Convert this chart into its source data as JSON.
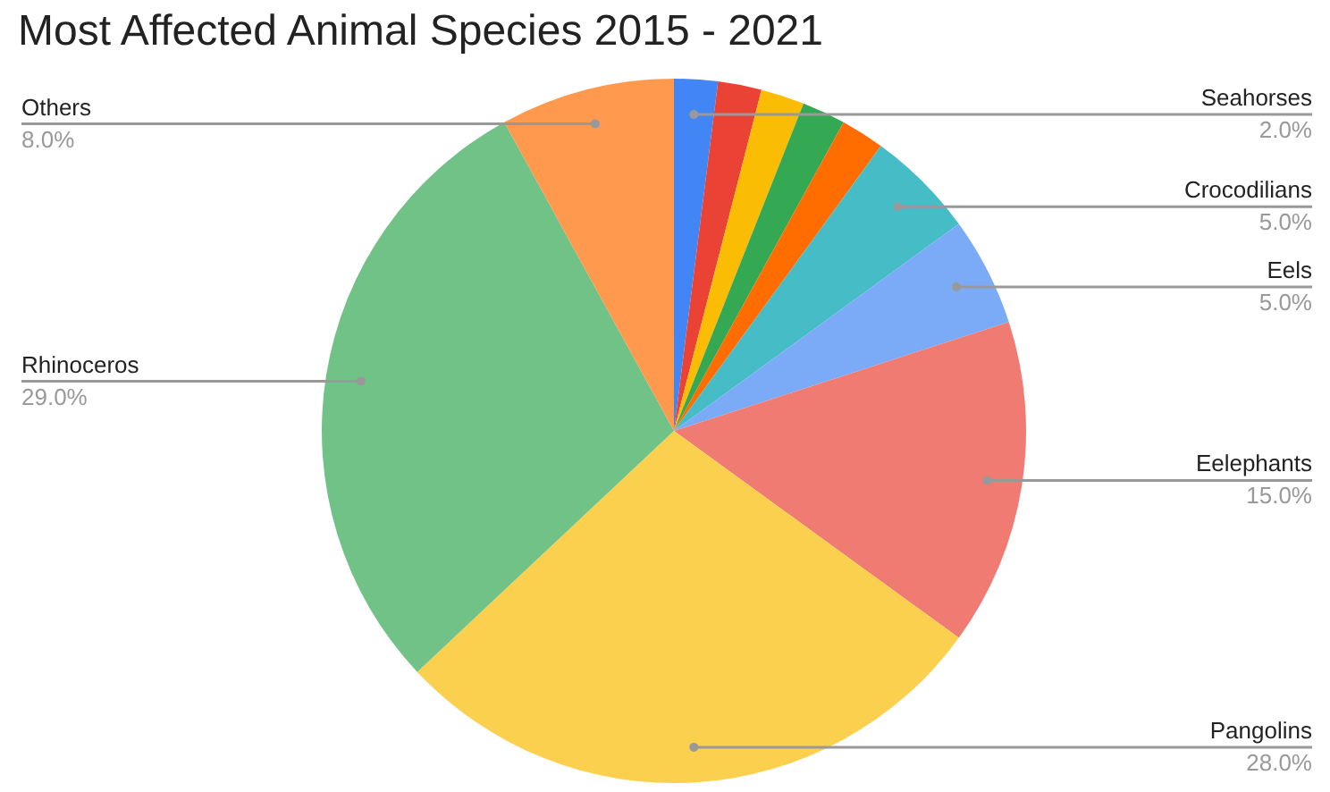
{
  "chart_data": {
    "type": "pie",
    "title": "Most Affected Animal Species 2015 - 2021",
    "categories": [
      "Seahorses",
      null,
      null,
      null,
      null,
      "Crocodilians",
      "Eels",
      "Eelephants",
      "Pangolins",
      "Rhinoceros",
      "Others"
    ],
    "values": [
      2,
      2,
      2,
      2,
      2,
      5,
      5,
      15,
      28,
      29,
      8
    ],
    "value_labels": [
      "2.0%",
      null,
      null,
      null,
      null,
      "5.0%",
      "5.0%",
      "15.0%",
      "28.0%",
      "29.0%",
      "8.0%"
    ],
    "colors": [
      "#4285f4",
      "#ea4335",
      "#fbbc04",
      "#34a853",
      "#ff6d01",
      "#46bdc6",
      "#7baaf7",
      "#f07b72",
      "#fcd04f",
      "#71c287",
      "#ff994d"
    ]
  }
}
